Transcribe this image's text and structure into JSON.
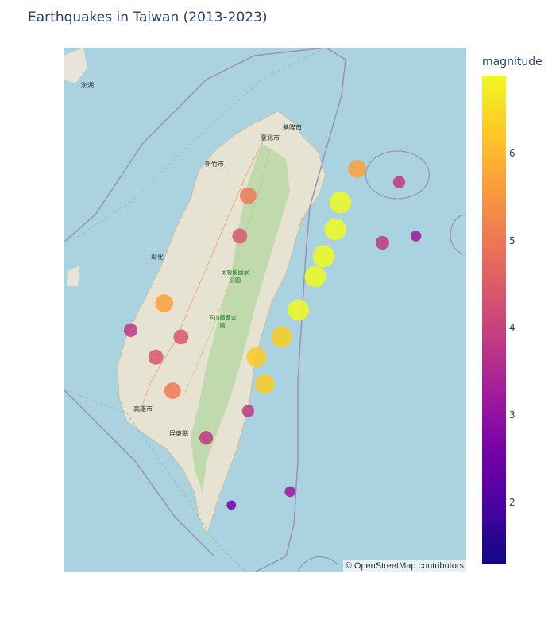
{
  "title": "Earthquakes in Taiwan (2013-2023)",
  "colorbar": {
    "title": "magnitude",
    "min": 1.3,
    "max": 6.9,
    "ticks": [
      "2",
      "3",
      "4",
      "5",
      "6"
    ],
    "tick_values": [
      2,
      3,
      4,
      5,
      6
    ],
    "colors": [
      "#0d0887",
      "#46039f",
      "#7201a8",
      "#9c179e",
      "#bd3786",
      "#d8576b",
      "#ed7953",
      "#fb9f3a",
      "#fdca26",
      "#f0f921"
    ]
  },
  "attribution": "© OpenStreetMap contributors",
  "places": [
    {
      "name": "臺北市",
      "green": false
    },
    {
      "name": "基隆市",
      "green": false
    },
    {
      "name": "新竹市",
      "green": false
    },
    {
      "name": "澎湖",
      "green": false
    },
    {
      "name": "高雄市",
      "green": false
    },
    {
      "name": "屏東縣",
      "green": false
    },
    {
      "name": "太魯閣國家公園",
      "green": true
    },
    {
      "name": "玉山國家公園",
      "green": true
    },
    {
      "name": "彰化",
      "green": false
    }
  ],
  "chart_data": {
    "type": "density_mapbox",
    "title": "Earthquakes in Taiwan (2013-2023)",
    "z_label": "magnitude",
    "colorscale": "Plasma",
    "zrange": [
      1.3,
      6.9
    ],
    "lon_range": [
      119.9,
      122.3
    ],
    "lat_range": [
      21.6,
      25.5
    ],
    "hotspots": [
      {
        "lon": 121.55,
        "lat": 24.35,
        "mag": 6.8
      },
      {
        "lon": 121.52,
        "lat": 24.15,
        "mag": 6.8
      },
      {
        "lon": 121.45,
        "lat": 23.95,
        "mag": 6.9
      },
      {
        "lon": 121.4,
        "lat": 23.8,
        "mag": 6.7
      },
      {
        "lon": 121.3,
        "lat": 23.55,
        "mag": 6.6
      },
      {
        "lon": 121.2,
        "lat": 23.35,
        "mag": 6.5
      },
      {
        "lon": 121.05,
        "lat": 23.2,
        "mag": 6.2
      },
      {
        "lon": 121.1,
        "lat": 23.0,
        "mag": 6.0
      },
      {
        "lon": 121.65,
        "lat": 24.6,
        "mag": 5.5
      },
      {
        "lon": 121.0,
        "lat": 24.4,
        "mag": 5.0
      },
      {
        "lon": 120.95,
        "lat": 24.1,
        "mag": 4.5
      },
      {
        "lon": 120.5,
        "lat": 23.6,
        "mag": 5.5
      },
      {
        "lon": 120.6,
        "lat": 23.35,
        "mag": 4.5
      },
      {
        "lon": 120.3,
        "lat": 23.4,
        "mag": 4.0
      },
      {
        "lon": 120.45,
        "lat": 23.2,
        "mag": 4.5
      },
      {
        "lon": 120.55,
        "lat": 22.95,
        "mag": 5.0
      },
      {
        "lon": 120.75,
        "lat": 22.6,
        "mag": 4.0
      },
      {
        "lon": 121.0,
        "lat": 22.8,
        "mag": 3.5
      },
      {
        "lon": 121.8,
        "lat": 24.05,
        "mag": 4.0
      },
      {
        "lon": 121.9,
        "lat": 24.5,
        "mag": 3.5
      },
      {
        "lon": 122.0,
        "lat": 24.1,
        "mag": 3.0
      },
      {
        "lon": 121.25,
        "lat": 22.2,
        "mag": 3.0
      },
      {
        "lon": 120.9,
        "lat": 22.1,
        "mag": 2.5
      }
    ]
  }
}
